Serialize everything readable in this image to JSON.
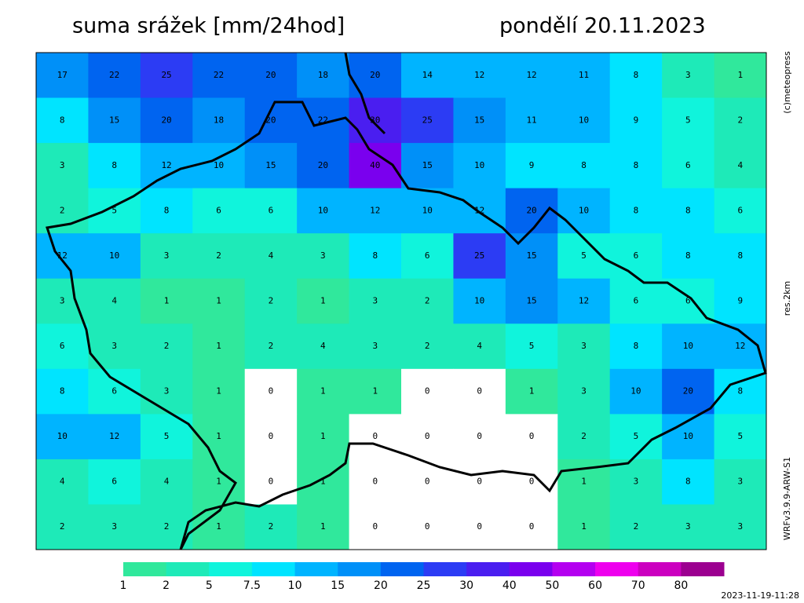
{
  "header": {
    "title": "suma srážek [mm/24hod]",
    "date": "pondělí 20.11.2023"
  },
  "side": {
    "copyright": "(c)meteopress",
    "resolution": "res.2km",
    "model": "WRFv3.9.9-ARW-S1",
    "timestamp": "2023-11-19-11:28"
  },
  "legend": {
    "thresholds": [
      1,
      2,
      5,
      7.5,
      10,
      15,
      20,
      25,
      30,
      40,
      50,
      60,
      70,
      80
    ],
    "colors": [
      "#30e89c",
      "#1eeab8",
      "#10f4dc",
      "#00e4ff",
      "#00b4ff",
      "#0090f8",
      "#0064f0",
      "#2c3cf4",
      "#4a1ef0",
      "#7a00ee",
      "#b400f0",
      "#ee00ee",
      "#cc00c0",
      "#9c0090"
    ]
  },
  "field": {
    "rows": [
      [
        17,
        22,
        25,
        22,
        20,
        18,
        20,
        14,
        12,
        12,
        11,
        8,
        3,
        1
      ],
      [
        8,
        15,
        20,
        18,
        20,
        22,
        30,
        25,
        15,
        11,
        10,
        9,
        5,
        2
      ],
      [
        3,
        8,
        12,
        10,
        15,
        20,
        40,
        15,
        10,
        9,
        8,
        8,
        6,
        4
      ],
      [
        2,
        5,
        8,
        6,
        6,
        10,
        12,
        10,
        12,
        20,
        10,
        8,
        8,
        6
      ],
      [
        12,
        10,
        3,
        2,
        4,
        3,
        8,
        6,
        25,
        15,
        5,
        6,
        8,
        8
      ],
      [
        3,
        4,
        1,
        1,
        2,
        1,
        3,
        2,
        10,
        15,
        12,
        6,
        6,
        9
      ],
      [
        6,
        3,
        2,
        1,
        2,
        4,
        3,
        2,
        4,
        5,
        3,
        8,
        10,
        12
      ],
      [
        8,
        6,
        3,
        1,
        0,
        1,
        1,
        0,
        0,
        1,
        3,
        10,
        20,
        8
      ],
      [
        10,
        12,
        5,
        1,
        0,
        1,
        0,
        0,
        0,
        0,
        2,
        5,
        10,
        5
      ],
      [
        4,
        6,
        4,
        1,
        0,
        1,
        0,
        0,
        0,
        0,
        1,
        3,
        8,
        3
      ],
      [
        2,
        3,
        2,
        1,
        2,
        1,
        0,
        0,
        0,
        0,
        1,
        2,
        3,
        3
      ]
    ]
  }
}
